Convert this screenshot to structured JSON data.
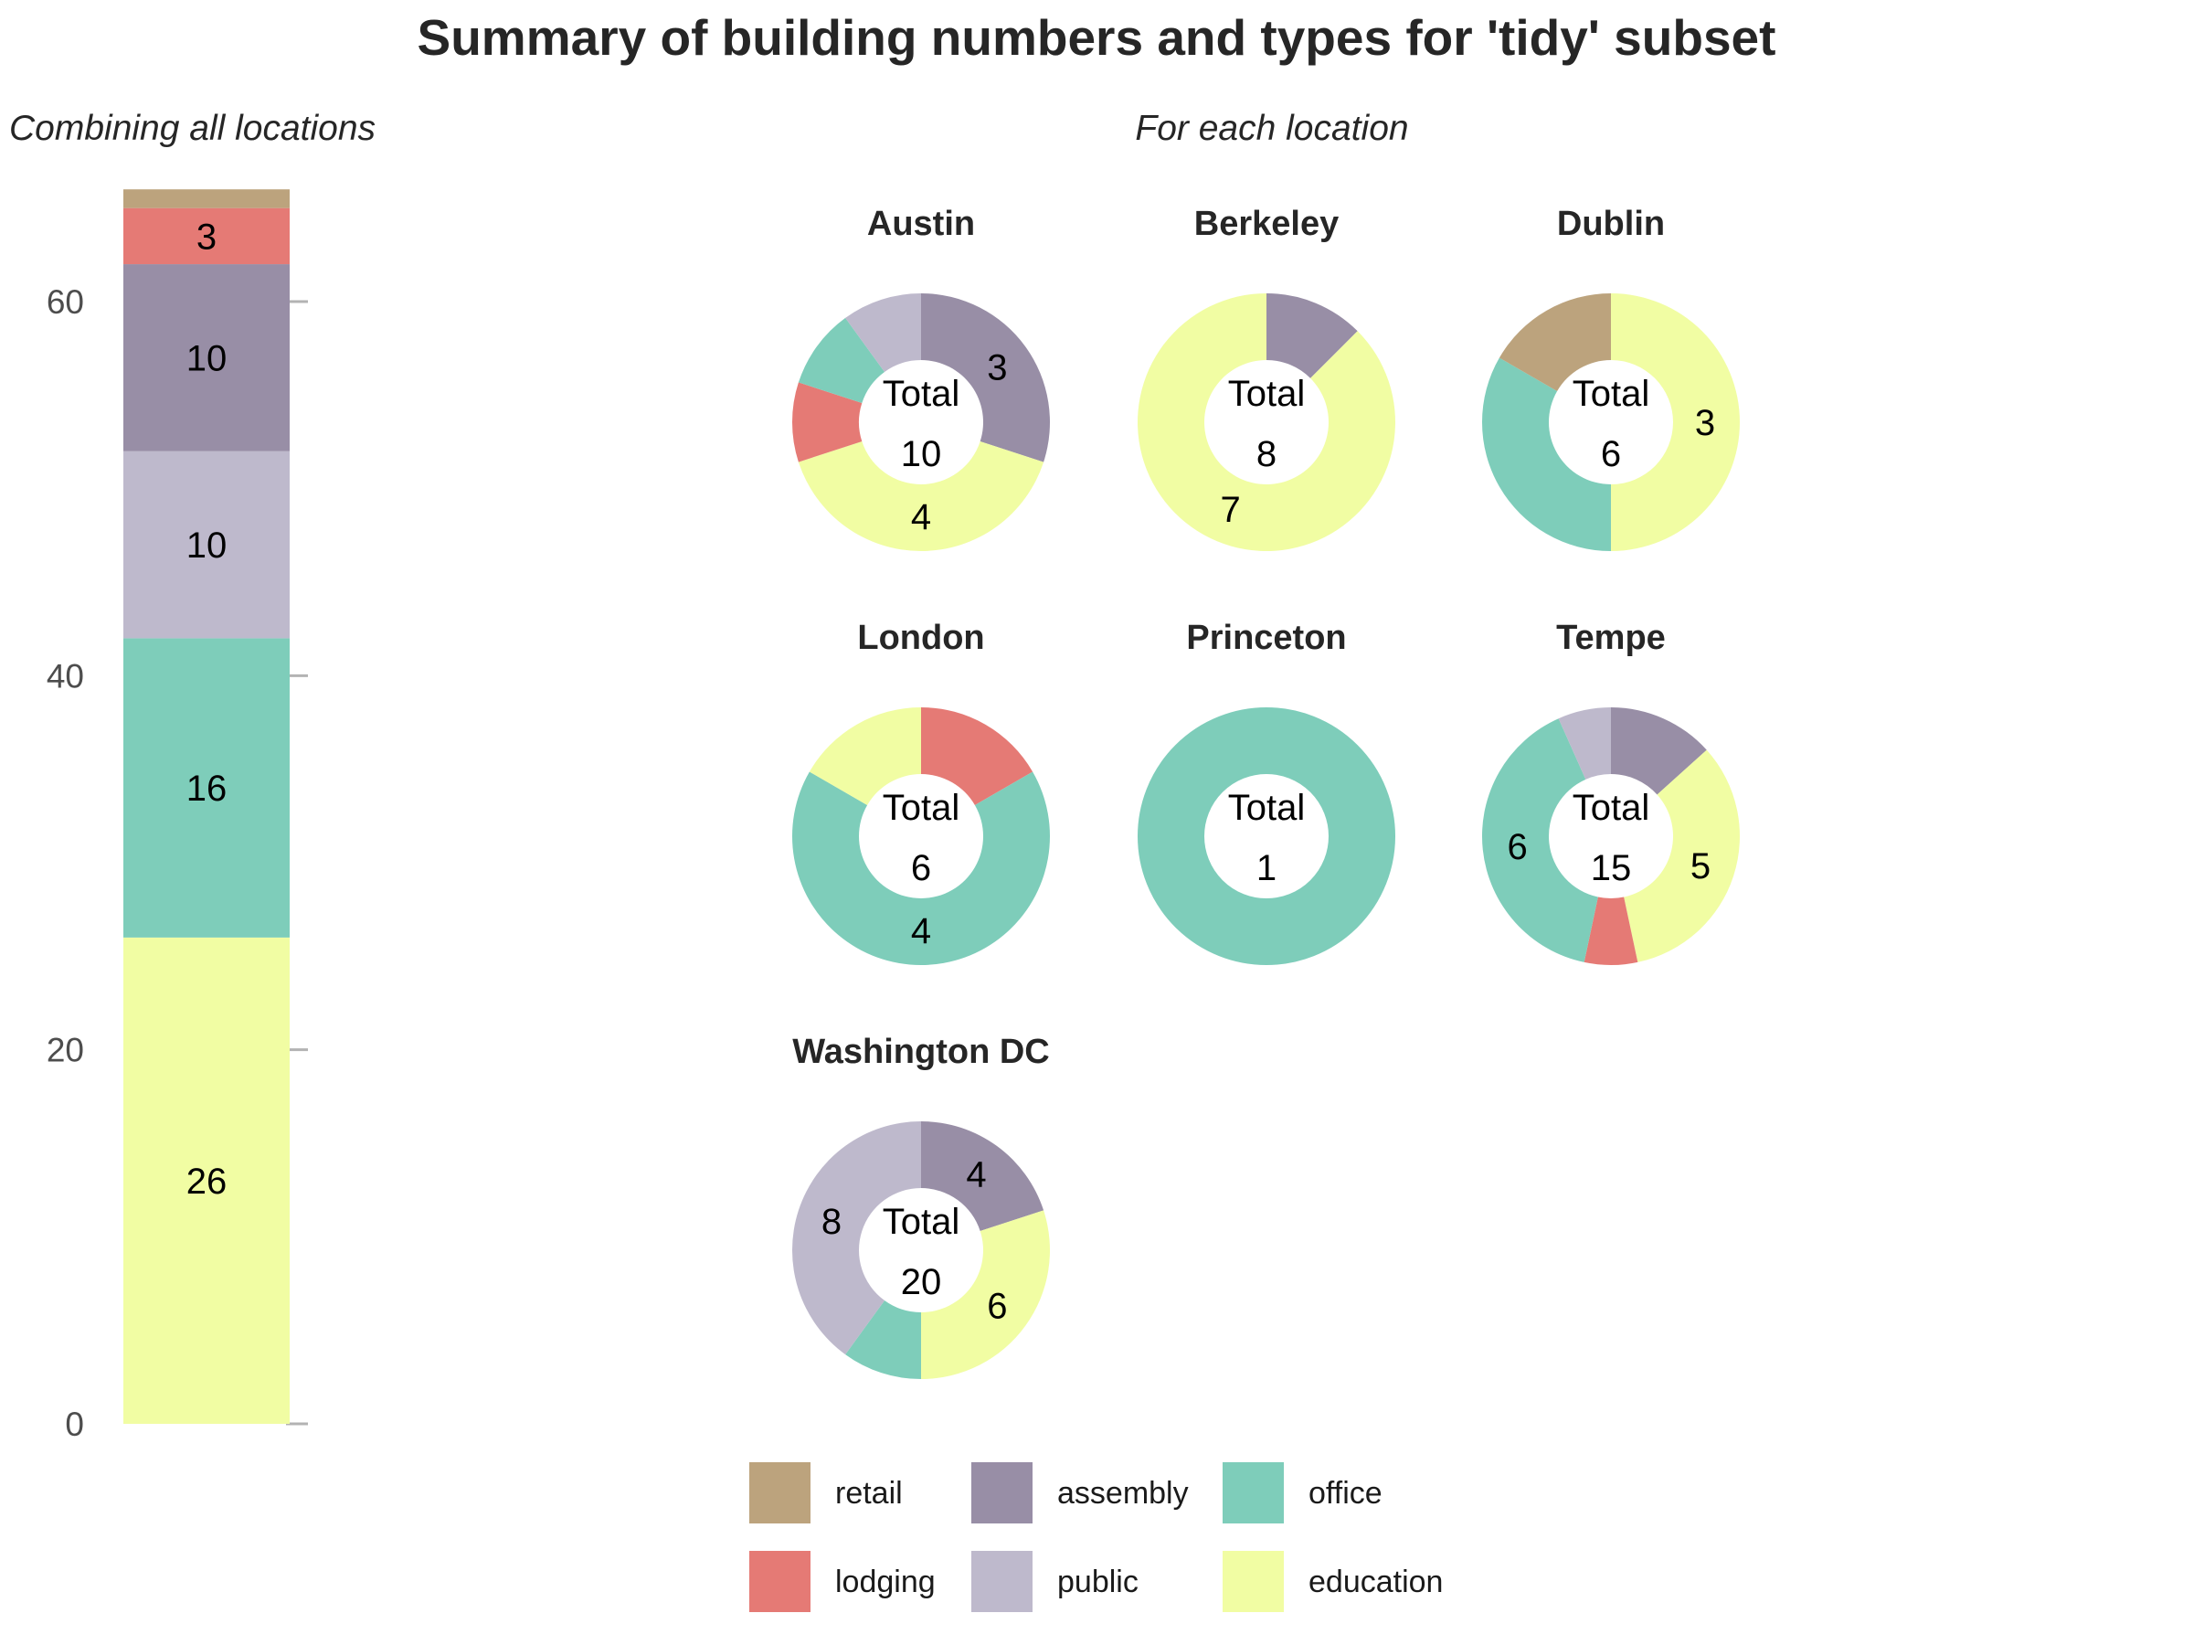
{
  "chart_data": {
    "title": "Summary of building numbers and types for 'tidy' subset",
    "colors": {
      "retail": "#BCA37D",
      "lodging": "#E57A75",
      "assembly": "#988EA6",
      "public": "#BEB9CC",
      "office": "#7ECDBA",
      "education": "#F1FDA3"
    },
    "legend": {
      "position": "bottom",
      "entries": [
        [
          "retail",
          "lodging"
        ],
        [
          "assembly",
          "public"
        ],
        [
          "office",
          "education"
        ]
      ]
    },
    "overall": {
      "type": "bar",
      "stacked": true,
      "subtitle": "Combining all locations",
      "ylim": [
        0,
        66
      ],
      "yticks": [
        0,
        20,
        40,
        60
      ],
      "grid": false,
      "segments": [
        {
          "type": "education",
          "value": 26,
          "label": "26"
        },
        {
          "type": "office",
          "value": 16,
          "label": "16"
        },
        {
          "type": "public",
          "value": 10,
          "label": "10"
        },
        {
          "type": "assembly",
          "value": 10,
          "label": "10"
        },
        {
          "type": "lodging",
          "value": 3,
          "label": "3"
        },
        {
          "type": "retail",
          "value": 1,
          "label": ""
        }
      ]
    },
    "per_location": {
      "type": "pie",
      "variant": "donut",
      "subtitle": "For each location",
      "center_label": "Total",
      "facets": [
        {
          "name": "Austin",
          "total": 10,
          "slices": [
            {
              "type": "assembly",
              "value": 3,
              "label": "3"
            },
            {
              "type": "education",
              "value": 4,
              "label": "4"
            },
            {
              "type": "lodging",
              "value": 1,
              "label": ""
            },
            {
              "type": "office",
              "value": 1,
              "label": ""
            },
            {
              "type": "public",
              "value": 1,
              "label": ""
            }
          ]
        },
        {
          "name": "Berkeley",
          "total": 8,
          "slices": [
            {
              "type": "assembly",
              "value": 1,
              "label": ""
            },
            {
              "type": "education",
              "value": 7,
              "label": "7"
            }
          ]
        },
        {
          "name": "Dublin",
          "total": 6,
          "slices": [
            {
              "type": "education",
              "value": 3,
              "label": "3"
            },
            {
              "type": "office",
              "value": 2,
              "label": ""
            },
            {
              "type": "retail",
              "value": 1,
              "label": ""
            }
          ]
        },
        {
          "name": "London",
          "total": 6,
          "slices": [
            {
              "type": "lodging",
              "value": 1,
              "label": ""
            },
            {
              "type": "office",
              "value": 4,
              "label": "4"
            },
            {
              "type": "education",
              "value": 1,
              "label": ""
            }
          ]
        },
        {
          "name": "Princeton",
          "total": 1,
          "slices": [
            {
              "type": "office",
              "value": 1,
              "label": ""
            }
          ]
        },
        {
          "name": "Tempe",
          "total": 15,
          "slices": [
            {
              "type": "assembly",
              "value": 2,
              "label": ""
            },
            {
              "type": "education",
              "value": 5,
              "label": "5"
            },
            {
              "type": "lodging",
              "value": 1,
              "label": ""
            },
            {
              "type": "office",
              "value": 6,
              "label": "6"
            },
            {
              "type": "public",
              "value": 1,
              "label": ""
            }
          ]
        },
        {
          "name": "Washington DC",
          "total": 20,
          "slices": [
            {
              "type": "assembly",
              "value": 4,
              "label": "4"
            },
            {
              "type": "education",
              "value": 6,
              "label": "6"
            },
            {
              "type": "office",
              "value": 2,
              "label": ""
            },
            {
              "type": "public",
              "value": 8,
              "label": "8"
            }
          ]
        }
      ]
    }
  }
}
